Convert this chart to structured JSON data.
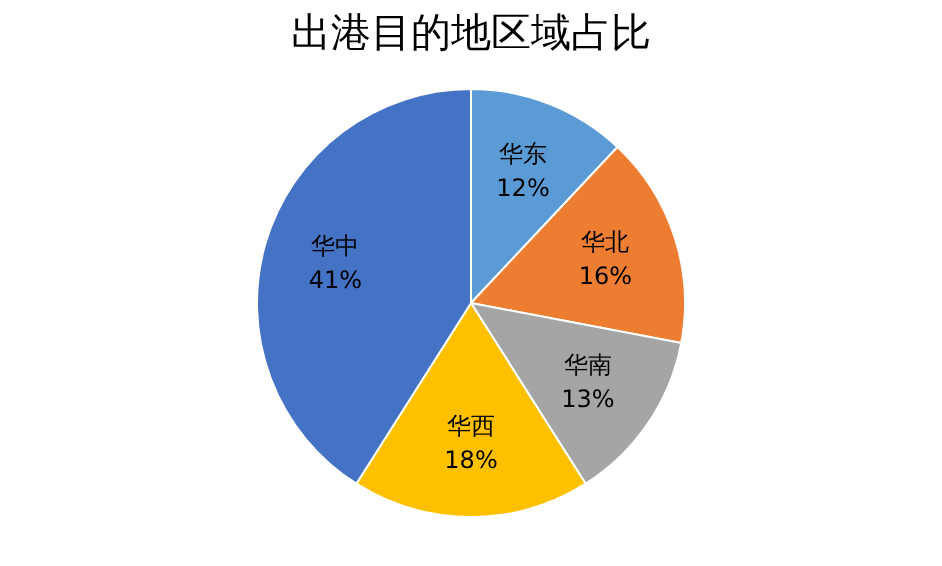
{
  "chart_data": {
    "type": "pie",
    "title": "出港目的地区域占比",
    "categories": [
      "华东",
      "华北",
      "华南",
      "华西",
      "华中"
    ],
    "values": [
      12,
      16,
      13,
      18,
      41
    ],
    "colors": [
      "#5b9bd5",
      "#ed7d31",
      "#a5a5a5",
      "#ffc000",
      "#4472c4"
    ],
    "value_labels": [
      "12%",
      "16%",
      "13%",
      "18%",
      "41%"
    ],
    "legend": false
  }
}
